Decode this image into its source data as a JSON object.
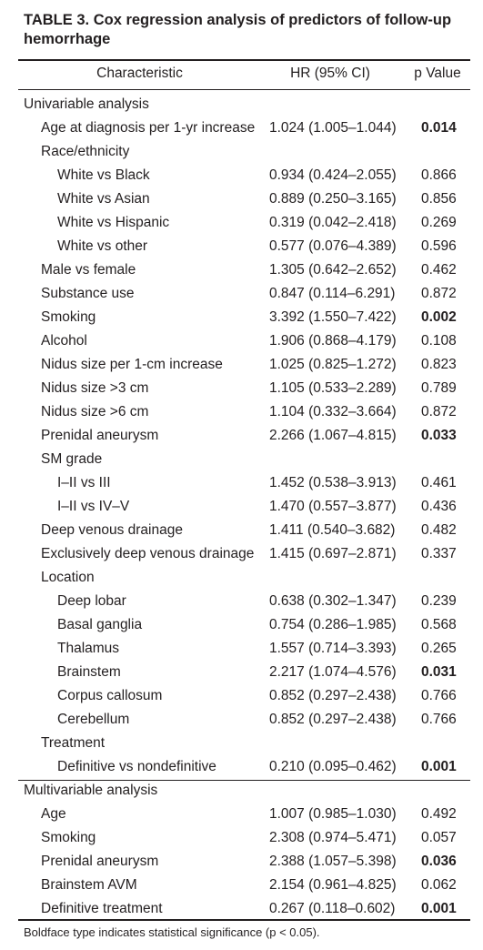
{
  "table": {
    "title": "TABLE 3. Cox regression analysis of predictors of follow-up hemorrhage",
    "headers": {
      "characteristic": "Characteristic",
      "hr": "HR (95% CI)",
      "p": "p Value"
    },
    "rows": [
      {
        "label": "Univariable analysis",
        "level": 0,
        "hr": "",
        "p": "",
        "bold": false
      },
      {
        "label": "Age at diagnosis per 1-yr increase",
        "level": 1,
        "hr": "1.024 (1.005–1.044)",
        "p": "0.014",
        "bold": true
      },
      {
        "label": "Race/ethnicity",
        "level": 1,
        "hr": "",
        "p": "",
        "bold": false
      },
      {
        "label": "White vs Black",
        "level": 2,
        "hr": "0.934 (0.424–2.055)",
        "p": "0.866",
        "bold": false
      },
      {
        "label": "White vs Asian",
        "level": 2,
        "hr": "0.889 (0.250–3.165)",
        "p": "0.856",
        "bold": false
      },
      {
        "label": "White vs Hispanic",
        "level": 2,
        "hr": "0.319 (0.042–2.418)",
        "p": "0.269",
        "bold": false
      },
      {
        "label": "White vs other",
        "level": 2,
        "hr": "0.577 (0.076–4.389)",
        "p": "0.596",
        "bold": false
      },
      {
        "label": "Male vs female",
        "level": 1,
        "hr": "1.305 (0.642–2.652)",
        "p": "0.462",
        "bold": false
      },
      {
        "label": "Substance use",
        "level": 1,
        "hr": "0.847 (0.114–6.291)",
        "p": "0.872",
        "bold": false
      },
      {
        "label": "Smoking",
        "level": 1,
        "hr": "3.392 (1.550–7.422)",
        "p": "0.002",
        "bold": true
      },
      {
        "label": "Alcohol",
        "level": 1,
        "hr": "1.906 (0.868–4.179)",
        "p": "0.108",
        "bold": false
      },
      {
        "label": "Nidus size per 1-cm increase",
        "level": 1,
        "hr": "1.025 (0.825–1.272)",
        "p": "0.823",
        "bold": false
      },
      {
        "label": "Nidus size >3 cm",
        "level": 1,
        "hr": "1.105 (0.533–2.289)",
        "p": "0.789",
        "bold": false
      },
      {
        "label": "Nidus size >6 cm",
        "level": 1,
        "hr": "1.104 (0.332–3.664)",
        "p": "0.872",
        "bold": false
      },
      {
        "label": "Prenidal aneurysm",
        "level": 1,
        "hr": "2.266 (1.067–4.815)",
        "p": "0.033",
        "bold": true
      },
      {
        "label": "SM grade",
        "level": 1,
        "hr": "",
        "p": "",
        "bold": false
      },
      {
        "label": "I–II vs III",
        "level": 2,
        "hr": "1.452 (0.538–3.913)",
        "p": "0.461",
        "bold": false
      },
      {
        "label": "I–II vs IV–V",
        "level": 2,
        "hr": "1.470 (0.557–3.877)",
        "p": "0.436",
        "bold": false
      },
      {
        "label": "Deep venous drainage",
        "level": 1,
        "hr": "1.411 (0.540–3.682)",
        "p": "0.482",
        "bold": false
      },
      {
        "label": "Exclusively deep venous drainage",
        "level": 1,
        "hr": "1.415 (0.697–2.871)",
        "p": "0.337",
        "bold": false
      },
      {
        "label": "Location",
        "level": 1,
        "hr": "",
        "p": "",
        "bold": false
      },
      {
        "label": "Deep lobar",
        "level": 2,
        "hr": "0.638 (0.302–1.347)",
        "p": "0.239",
        "bold": false
      },
      {
        "label": "Basal ganglia",
        "level": 2,
        "hr": "0.754 (0.286–1.985)",
        "p": "0.568",
        "bold": false
      },
      {
        "label": "Thalamus",
        "level": 2,
        "hr": "1.557 (0.714–3.393)",
        "p": "0.265",
        "bold": false
      },
      {
        "label": "Brainstem",
        "level": 2,
        "hr": "2.217 (1.074–4.576)",
        "p": "0.031",
        "bold": true
      },
      {
        "label": "Corpus callosum",
        "level": 2,
        "hr": "0.852 (0.297–2.438)",
        "p": "0.766",
        "bold": false
      },
      {
        "label": "Cerebellum",
        "level": 2,
        "hr": "0.852 (0.297–2.438)",
        "p": "0.766",
        "bold": false
      },
      {
        "label": "Treatment",
        "level": 1,
        "hr": "",
        "p": "",
        "bold": false
      },
      {
        "label": "Definitive vs nondefinitive",
        "level": 2,
        "hr": "0.210 (0.095–0.462)",
        "p": "0.001",
        "bold": true
      },
      {
        "label": "Multivariable analysis",
        "level": 0,
        "hr": "",
        "p": "",
        "bold": false
      },
      {
        "label": "Age",
        "level": 1,
        "hr": "1.007 (0.985–1.030)",
        "p": "0.492",
        "bold": false
      },
      {
        "label": "Smoking",
        "level": 1,
        "hr": "2.308 (0.974–5.471)",
        "p": "0.057",
        "bold": false
      },
      {
        "label": "Prenidal aneurysm",
        "level": 1,
        "hr": "2.388 (1.057–5.398)",
        "p": "0.036",
        "bold": true
      },
      {
        "label": "Brainstem AVM",
        "level": 1,
        "hr": "2.154 (0.961–4.825)",
        "p": "0.062",
        "bold": false
      },
      {
        "label": "Definitive treatment",
        "level": 1,
        "hr": "0.267 (0.118–0.602)",
        "p": "0.001",
        "bold": true
      }
    ],
    "footnote": "Boldface type indicates statistical significance (p < 0.05)."
  }
}
